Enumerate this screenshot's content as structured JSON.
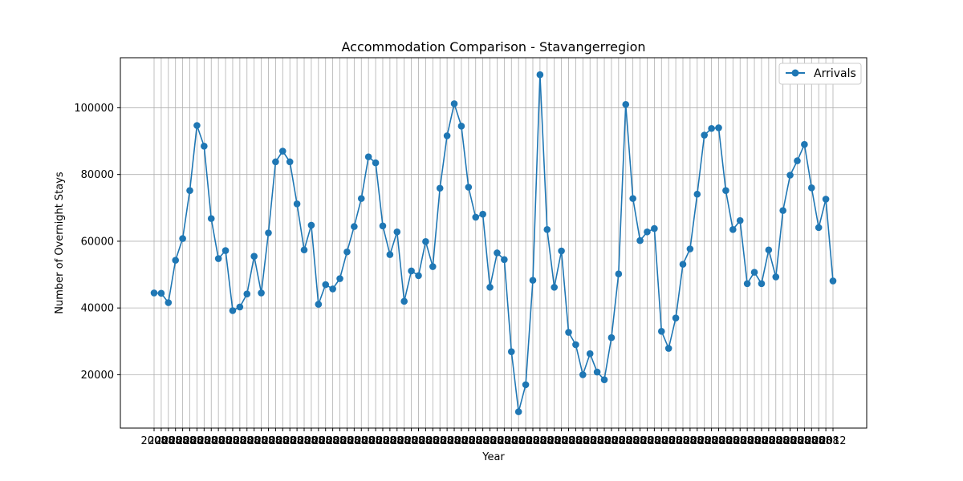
{
  "chart_data": {
    "type": "line",
    "title": "Accommodation Comparison - Stavangerregion",
    "xlabel": "Year",
    "ylabel": "Number of Overnight Stays",
    "ylim": [
      4000,
      115000
    ],
    "yticks": [
      20000,
      40000,
      60000,
      80000,
      100000
    ],
    "grid": true,
    "legend_position": "top-right",
    "series_color": "#1f77b4",
    "x_tick_label_start": "2008",
    "x_tick_label_end": "2012",
    "series": [
      {
        "name": "Arrivals",
        "values": [
          44500,
          44400,
          41600,
          54300,
          60800,
          75200,
          94700,
          88500,
          66800,
          54800,
          57200,
          39200,
          40300,
          44200,
          55500,
          44500,
          62500,
          83800,
          87000,
          83800,
          71200,
          57400,
          64800,
          41100,
          47000,
          45700,
          48800,
          56800,
          64400,
          72800,
          85300,
          83500,
          64600,
          56000,
          62800,
          42000,
          51100,
          49700,
          59900,
          52400,
          75900,
          91600,
          101200,
          94500,
          76200,
          67200,
          68100,
          46200,
          56500,
          54500,
          26900,
          8900,
          17000,
          48300,
          109900,
          63500,
          46200,
          57100,
          32700,
          29000,
          20000,
          26300,
          20800,
          18500,
          31100,
          50200,
          101000,
          72800,
          60200,
          62800,
          63800,
          33000,
          27900,
          37000,
          53100,
          57700,
          74100,
          91800,
          93800,
          94000,
          75200,
          63500,
          66200,
          47300,
          50700,
          47300,
          57400,
          49300,
          69200,
          79800,
          84100,
          89000,
          76000,
          64100,
          72600,
          48100
        ]
      }
    ]
  }
}
